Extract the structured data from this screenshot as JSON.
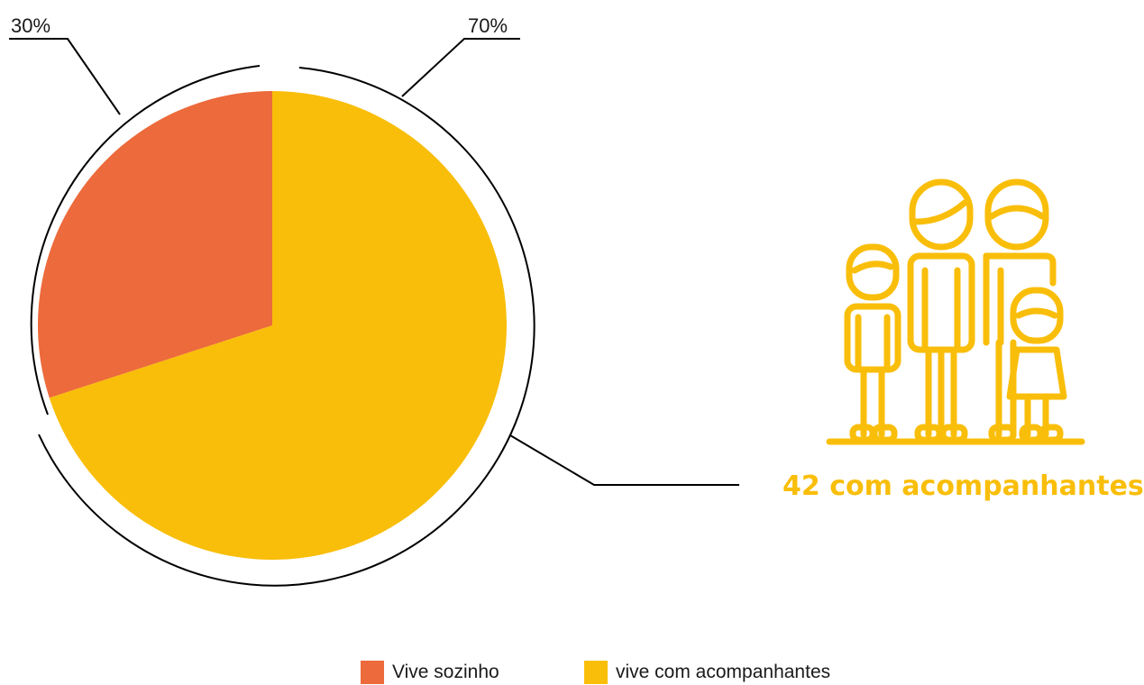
{
  "colors": {
    "alone": "#EC6A3B",
    "accompanied": "#F9BE0A",
    "line": "#000000"
  },
  "callout": {
    "text": "42 com acompanhantes",
    "icon": "family-icon"
  },
  "chart_data": {
    "type": "pie",
    "series": [
      {
        "name": "Vive sozinho",
        "value": 30,
        "label": "30%"
      },
      {
        "name": "vive com acompanhantes",
        "value": 70,
        "label": "70%"
      }
    ],
    "legend": {
      "placement": "bottom-center"
    }
  }
}
